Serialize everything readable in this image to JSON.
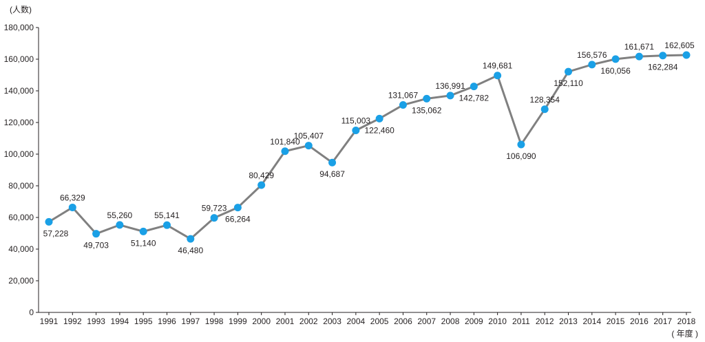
{
  "chart_data": {
    "type": "line",
    "y_unit_label": "(人数)",
    "x_unit_label": "( 年度 )",
    "ylim": [
      0,
      180000
    ],
    "y_ticks": [
      "0",
      "20,000",
      "40,000",
      "60,000",
      "80,000",
      "100,000",
      "120,000",
      "140,000",
      "160,000",
      "180,000"
    ],
    "grid": false,
    "line_color": "#808080",
    "marker_color": "#1aa0e6",
    "categories": [
      "1991",
      "1992",
      "1993",
      "1994",
      "1995",
      "1996",
      "1997",
      "1998",
      "1999",
      "2000",
      "2001",
      "2002",
      "2003",
      "2004",
      "2005",
      "2006",
      "2007",
      "2008",
      "2009",
      "2010",
      "2011",
      "2012",
      "2013",
      "2014",
      "2015",
      "2016",
      "2017",
      "2018"
    ],
    "values": [
      57228,
      66329,
      49703,
      55260,
      51140,
      55141,
      46480,
      59723,
      66264,
      80429,
      101840,
      105407,
      94687,
      115003,
      122460,
      131067,
      135062,
      136991,
      142782,
      149681,
      106090,
      128354,
      152110,
      156576,
      160056,
      161671,
      162284,
      162605
    ],
    "value_labels": [
      "57,228",
      "66,329",
      "49,703",
      "55,260",
      "51,140",
      "55,141",
      "46,480",
      "59,723",
      "66,264",
      "80,429",
      "101,840",
      "105,407",
      "94,687",
      "115,003",
      "122,460",
      "131,067",
      "135,062",
      "136,991",
      "142,782",
      "149,681",
      "106,090",
      "128,354",
      "152,110",
      "156,576",
      "160,056",
      "161,671",
      "162,284",
      "162,605"
    ],
    "label_positions": [
      "below",
      "above",
      "below",
      "above",
      "below",
      "above",
      "below",
      "above",
      "below",
      "above",
      "above",
      "above",
      "below",
      "above",
      "below",
      "above",
      "below",
      "above",
      "below",
      "above",
      "below",
      "above",
      "below",
      "above",
      "below",
      "above",
      "below",
      "above"
    ]
  }
}
